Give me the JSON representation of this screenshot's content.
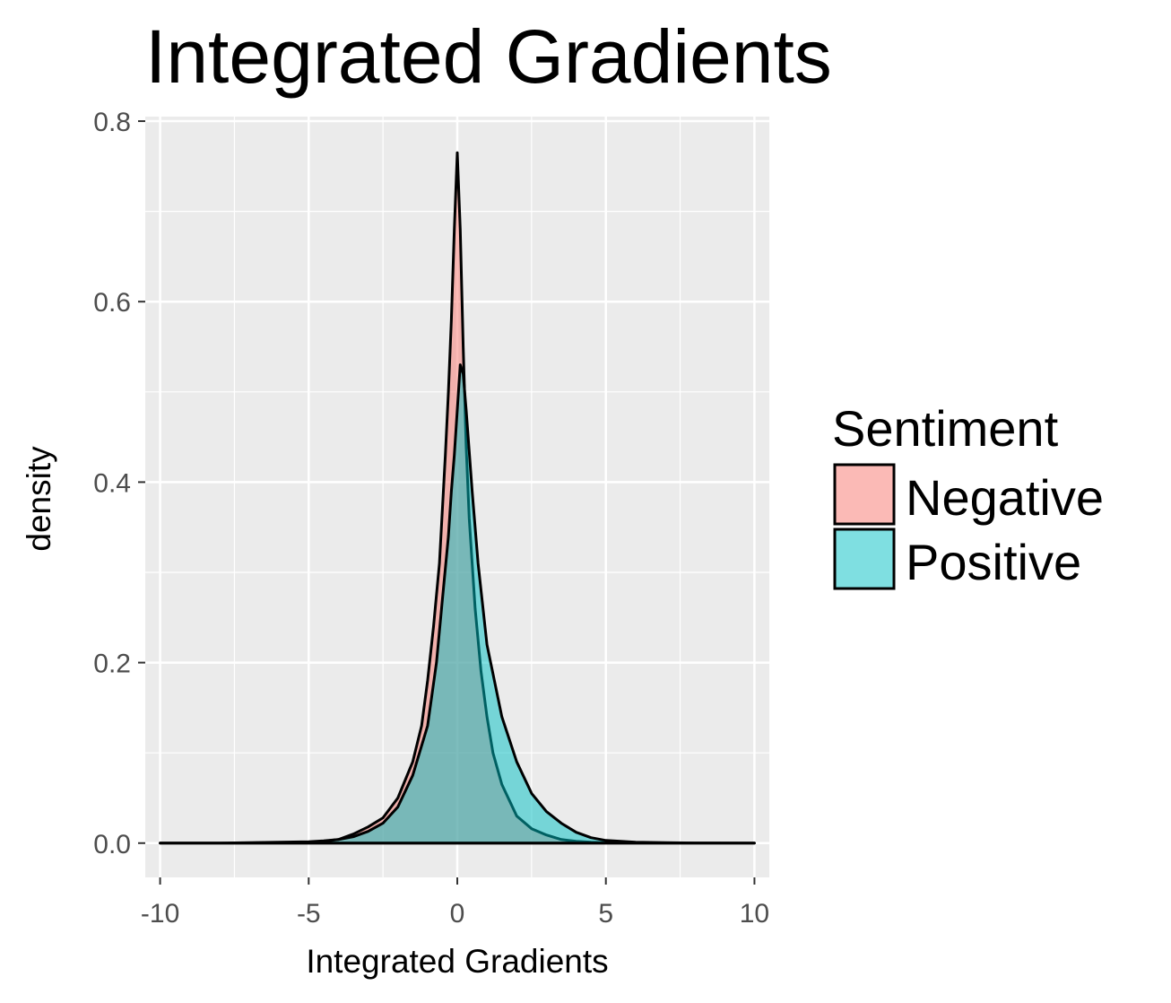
{
  "chart_data": {
    "type": "area",
    "title": "Integrated Gradients",
    "xlabel": "Integrated Gradients",
    "ylabel": "density",
    "xlim": [
      -10.5,
      10.5
    ],
    "ylim": [
      -0.038,
      0.805
    ],
    "xticks": [
      -10,
      -5,
      0,
      5,
      10
    ],
    "xtick_labels": [
      "-10",
      "-5",
      "0",
      "5",
      "10"
    ],
    "yticks": [
      0.0,
      0.2,
      0.4,
      0.6,
      0.8
    ],
    "ytick_labels": [
      "0.0",
      "0.2",
      "0.4",
      "0.6",
      "0.8"
    ],
    "grid": true,
    "legend": {
      "title": "Sentiment",
      "placement": "right",
      "entries": [
        "Negative",
        "Positive"
      ]
    },
    "series": [
      {
        "name": "Negative",
        "fill": "#F8766D",
        "x": [
          -10,
          -8,
          -7,
          -6,
          -5,
          -4.5,
          -4,
          -3.5,
          -3,
          -2.5,
          -2,
          -1.5,
          -1.2,
          -1,
          -0.8,
          -0.6,
          -0.4,
          -0.3,
          -0.2,
          -0.1,
          0,
          0.1,
          0.2,
          0.3,
          0.4,
          0.6,
          0.8,
          1,
          1.2,
          1.5,
          2,
          2.5,
          3,
          3.5,
          4,
          4.5,
          5,
          6,
          7,
          8,
          10
        ],
        "y": [
          0,
          0,
          0.0005,
          0.001,
          0.0015,
          0.0025,
          0.004,
          0.01,
          0.018,
          0.028,
          0.05,
          0.09,
          0.13,
          0.18,
          0.24,
          0.31,
          0.43,
          0.5,
          0.58,
          0.68,
          0.765,
          0.68,
          0.55,
          0.44,
          0.36,
          0.26,
          0.19,
          0.14,
          0.1,
          0.065,
          0.03,
          0.016,
          0.009,
          0.004,
          0.002,
          0.001,
          0.0005,
          0.0002,
          0.0001,
          0,
          0
        ]
      },
      {
        "name": "Positive",
        "fill": "#00BFC4",
        "x": [
          -10,
          -8,
          -6,
          -5,
          -4.5,
          -4,
          -3.5,
          -3,
          -2.5,
          -2,
          -1.5,
          -1,
          -0.7,
          -0.5,
          -0.3,
          -0.2,
          -0.1,
          0,
          0.1,
          0.2,
          0.3,
          0.5,
          0.7,
          1,
          1.5,
          2,
          2.5,
          3,
          3.5,
          4,
          4.5,
          5,
          6,
          7,
          8,
          10
        ],
        "y": [
          0,
          0,
          0.0005,
          0.001,
          0.002,
          0.004,
          0.007,
          0.013,
          0.022,
          0.04,
          0.075,
          0.13,
          0.2,
          0.27,
          0.34,
          0.39,
          0.43,
          0.48,
          0.53,
          0.52,
          0.48,
          0.39,
          0.31,
          0.22,
          0.14,
          0.09,
          0.055,
          0.035,
          0.022,
          0.012,
          0.006,
          0.003,
          0.001,
          0.0005,
          0.0002,
          0
        ]
      }
    ]
  },
  "colors": {
    "panel_background": "#EBEBEB",
    "grid_major": "#FFFFFF",
    "negative_fill": "#F8766D",
    "positive_fill": "#00BFC4",
    "outline": "#000000"
  }
}
